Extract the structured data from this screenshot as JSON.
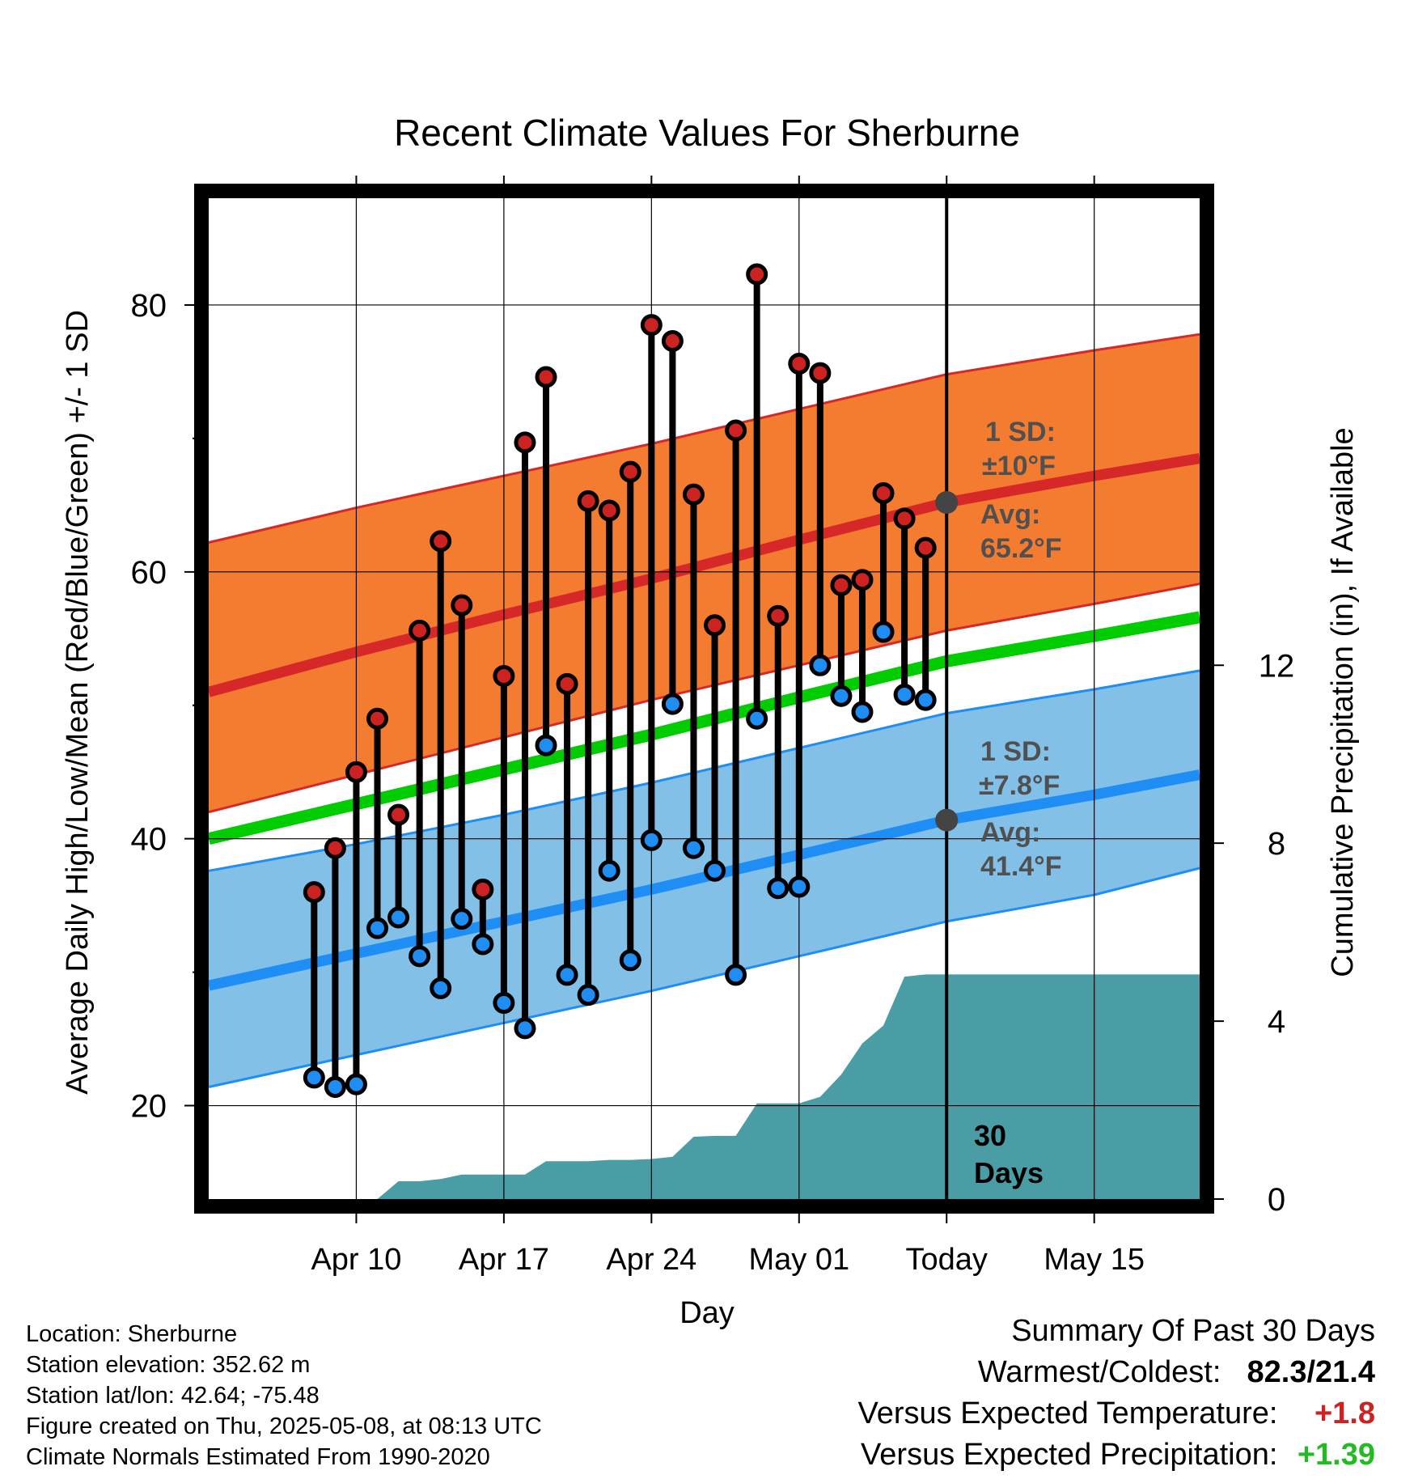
{
  "colors": {
    "high_band": "#f47c30",
    "high_band_edge": "#d62828",
    "high_mean": "#d62828",
    "low_band": "#83c0e8",
    "low_band_edge": "#1e8ef5",
    "low_mean": "#1e8ef5",
    "mean_line": "#00cc00",
    "precip_fill": "#4a9ca5",
    "high_marker": "#cc2222",
    "low_marker": "#1e8ef5",
    "today_marker": "#444444",
    "plus_temp": "#cc2222",
    "plus_precip": "#22bb22"
  },
  "chart_data": {
    "type": "line",
    "title": "Recent Climate Values For Sherburne",
    "xlabel": "Day",
    "ylabel": "Average Daily High/Low/Mean (Red/Blue/Green) +/- 1 SD",
    "y2label": "Cumulative Precipitation (in), If Available",
    "xlim_days": [
      -35,
      12
    ],
    "ylim": [
      13,
      88
    ],
    "y2lim": [
      0,
      22.5
    ],
    "grid": true,
    "x_tick_labels": [
      {
        "day": -28,
        "label": "Apr 10"
      },
      {
        "day": -21,
        "label": "Apr 17"
      },
      {
        "day": -14,
        "label": "Apr 24"
      },
      {
        "day": -7,
        "label": "May 01"
      },
      {
        "day": 0,
        "label": "Today"
      },
      {
        "day": 7,
        "label": "May 15"
      }
    ],
    "y_ticks": [
      20,
      40,
      60,
      80
    ],
    "y_minor_ticks": [
      30,
      50,
      70
    ],
    "y2_ticks": [
      0,
      4,
      8,
      12
    ],
    "normals": {
      "day": [
        -35,
        -28,
        -21,
        -14,
        -7,
        0,
        7,
        12
      ],
      "high_mean": [
        51.0,
        54.0,
        56.8,
        59.5,
        62.4,
        65.2,
        67.2,
        68.5
      ],
      "high_upper": [
        62.2,
        64.8,
        67.2,
        69.6,
        72.2,
        74.8,
        76.6,
        77.8
      ],
      "high_lower": [
        42.0,
        44.8,
        47.6,
        50.4,
        53.0,
        55.6,
        57.6,
        59.1
      ],
      "low_mean": [
        29.0,
        31.4,
        33.8,
        36.2,
        38.8,
        41.4,
        43.3,
        44.8
      ],
      "low_upper": [
        37.6,
        39.6,
        41.8,
        44.2,
        46.8,
        49.4,
        51.2,
        52.6
      ],
      "low_lower": [
        21.4,
        23.8,
        26.2,
        28.6,
        31.2,
        33.8,
        35.8,
        37.8
      ],
      "mean_line": [
        40.0,
        42.6,
        45.2,
        47.8,
        50.6,
        53.3,
        55.2,
        56.6
      ]
    },
    "series": [
      {
        "name": "High",
        "x": [
          -30,
          -29,
          -28,
          -27,
          -26,
          -25,
          -24,
          -23,
          -22,
          -21,
          -20,
          -19,
          -18,
          -17,
          -16,
          -15,
          -14,
          -13,
          -12,
          -11,
          -10,
          -9,
          -8,
          -7,
          -6,
          -5,
          -4,
          -3,
          -2,
          -1
        ],
        "values": [
          36.0,
          39.3,
          45.0,
          49.0,
          41.8,
          55.6,
          62.3,
          57.5,
          36.2,
          52.2,
          69.7,
          74.6,
          51.6,
          65.3,
          64.6,
          67.5,
          78.5,
          77.3,
          65.8,
          56.0,
          70.6,
          82.3,
          56.7,
          75.6,
          74.9,
          59.0,
          59.4,
          65.9,
          64.0,
          61.8
        ]
      },
      {
        "name": "Low",
        "x": [
          -30,
          -29,
          -28,
          -27,
          -26,
          -25,
          -24,
          -23,
          -22,
          -21,
          -20,
          -19,
          -18,
          -17,
          -16,
          -15,
          -14,
          -13,
          -12,
          -11,
          -10,
          -9,
          -8,
          -7,
          -6,
          -5,
          -4,
          -3,
          -2,
          -1
        ],
        "values": [
          22.1,
          21.4,
          21.6,
          33.3,
          34.1,
          31.2,
          28.8,
          34.0,
          32.1,
          27.7,
          25.8,
          47.0,
          29.8,
          28.3,
          37.6,
          30.9,
          39.9,
          50.1,
          39.3,
          37.6,
          29.8,
          49.0,
          36.3,
          36.4,
          53.0,
          50.7,
          49.5,
          55.5,
          50.8,
          50.4
        ]
      }
    ],
    "precipitation": {
      "day": [
        -35,
        -27,
        -26,
        -25,
        -24,
        -23,
        -22,
        -21,
        -20,
        -19,
        -18,
        -17,
        -16,
        -15,
        -14,
        -13,
        -12,
        -11,
        -10,
        -9,
        -8,
        -7,
        -6,
        -5,
        -4,
        -3,
        -2,
        -1,
        0,
        12
      ],
      "values": [
        0,
        0,
        0.4,
        0.4,
        0.45,
        0.55,
        0.55,
        0.55,
        0.55,
        0.85,
        0.85,
        0.85,
        0.88,
        0.88,
        0.9,
        0.95,
        1.4,
        1.42,
        1.42,
        2.15,
        2.15,
        2.15,
        2.3,
        2.8,
        3.5,
        3.9,
        5.0,
        5.05,
        5.05,
        5.05
      ]
    },
    "annotations": {
      "high_sd": "1 SD:",
      "high_sd_value": "±10°F",
      "high_avg": "Avg:",
      "high_avg_value": "65.2°F",
      "low_sd": "1 SD:",
      "low_sd_value": "±7.8°F",
      "low_avg": "Avg:",
      "low_avg_value": "41.4°F",
      "period_count": "30",
      "period_unit": "Days"
    }
  },
  "footer": {
    "location": "Location: Sherburne",
    "elevation": "Station elevation: 352.62 m",
    "latlon": "Station lat/lon: 42.64; -75.48",
    "created": "Figure created on Thu, 2025-05-08, at 08:13 UTC",
    "normals_note": "Climate Normals Estimated From 1990-2020"
  },
  "summary": {
    "heading": "Summary Of Past 30 Days",
    "warmest_coldest_label": "Warmest/Coldest:",
    "warmest_coldest_value": "82.3/21.4",
    "temp_label": "Versus Expected Temperature:",
    "temp_value": "+1.8",
    "precip_label": "Versus Expected Precipitation:",
    "precip_value": "+1.39"
  }
}
